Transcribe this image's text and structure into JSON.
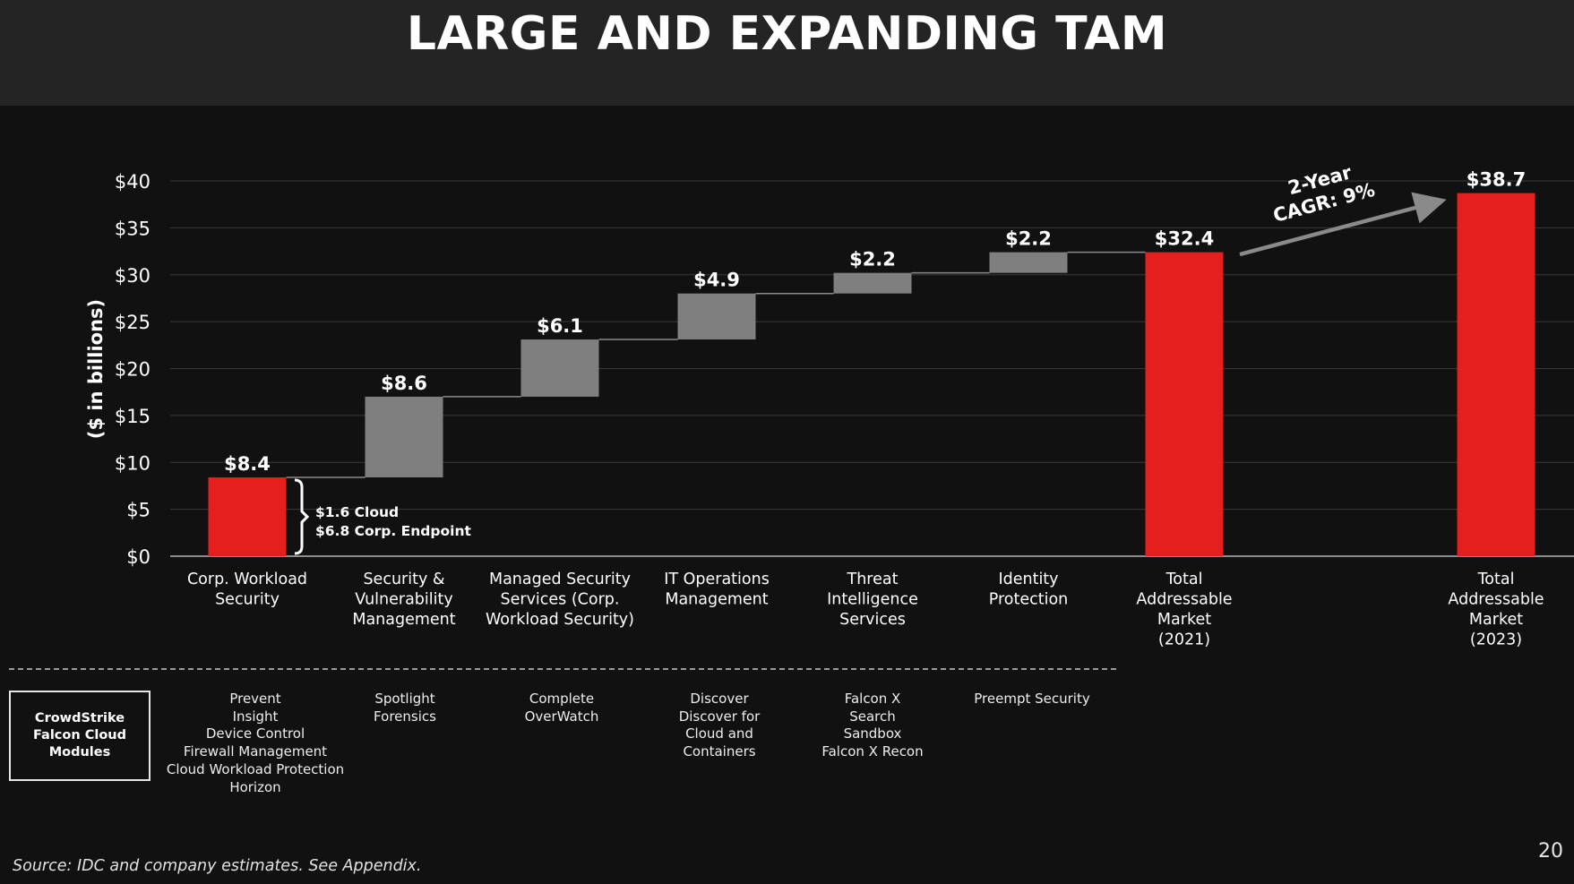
{
  "slide": {
    "title": "LARGE AND EXPANDING TAM",
    "source": "Source: IDC and company estimates.  See Appendix.",
    "page_number": "20"
  },
  "chart_data": {
    "type": "waterfall",
    "ylabel": "($ in billions)",
    "ylim": [
      0,
      40
    ],
    "yticks": [
      0,
      5,
      10,
      15,
      20,
      25,
      30,
      35,
      40
    ],
    "ytick_labels": [
      "$0",
      "$5",
      "$10",
      "$15",
      "$20",
      "$25",
      "$30",
      "$35",
      "$40"
    ],
    "grid": true,
    "bars": [
      {
        "category": [
          "Corp. Workload",
          "Security"
        ],
        "kind": "total",
        "start": 0,
        "end": 8.4,
        "label": "$8.4",
        "color": "#e51f1d"
      },
      {
        "category": [
          "Security &",
          "Vulnerability",
          "Management"
        ],
        "kind": "increment",
        "start": 8.4,
        "end": 17.0,
        "label": "$8.6",
        "color": "#7f7f7f"
      },
      {
        "category": [
          "Managed Security",
          "Services (Corp.",
          "Workload Security)"
        ],
        "kind": "increment",
        "start": 17.0,
        "end": 23.1,
        "label": "$6.1",
        "color": "#7f7f7f"
      },
      {
        "category": [
          "IT Operations",
          "Management"
        ],
        "kind": "increment",
        "start": 23.1,
        "end": 28.0,
        "label": "$4.9",
        "color": "#7f7f7f"
      },
      {
        "category": [
          "Threat",
          "Intelligence",
          "Services"
        ],
        "kind": "increment",
        "start": 28.0,
        "end": 30.2,
        "label": "$2.2",
        "color": "#7f7f7f"
      },
      {
        "category": [
          "Identity",
          "Protection"
        ],
        "kind": "increment",
        "start": 30.2,
        "end": 32.4,
        "label": "$2.2",
        "color": "#7f7f7f"
      },
      {
        "category": [
          "Total",
          "Addressable",
          "Market",
          "(2021)"
        ],
        "kind": "total",
        "start": 0,
        "end": 32.4,
        "label": "$32.4",
        "color": "#e51f1d"
      },
      {
        "category": [
          "Total",
          "Addressable",
          "Market",
          "(2023)"
        ],
        "kind": "total",
        "start": 0,
        "end": 38.7,
        "label": "$38.7",
        "color": "#e51f1d"
      }
    ],
    "annotations": {
      "bracket_lines": [
        "$1.6 Cloud",
        "$6.8 Corp. Endpoint"
      ],
      "cagr_lines": [
        "2-Year",
        "CAGR: 9%"
      ]
    }
  },
  "modules": {
    "box_label": "CrowdStrike\nFalcon Cloud\nModules",
    "columns": [
      [
        "Prevent",
        "Insight",
        "Device Control",
        "Firewall Management",
        "Cloud Workload Protection",
        "Horizon"
      ],
      [
        "Spotlight",
        "Forensics"
      ],
      [
        "Complete",
        "OverWatch"
      ],
      [
        "Discover",
        "Discover for",
        "Cloud and",
        "Containers"
      ],
      [
        "Falcon X",
        "Search",
        "Sandbox",
        "Falcon X Recon"
      ],
      [
        "Preempt Security"
      ]
    ]
  }
}
